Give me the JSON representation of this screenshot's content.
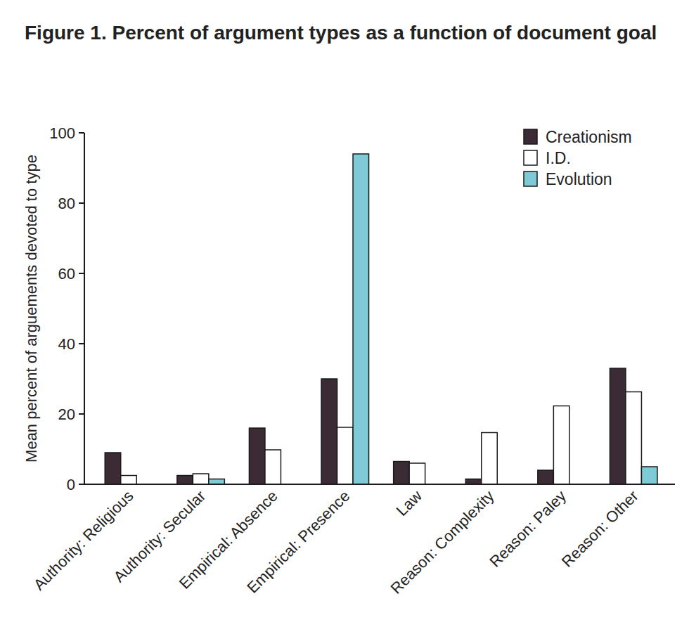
{
  "chart_data": {
    "type": "bar",
    "title": "Figure 1. Percent of argument types as a function of document goal",
    "y_label": "Mean percent of arguements devoted to type",
    "categories": [
      "Authority: Religious",
      "Authority: Secular",
      "Empirical: Absence",
      "Empirical: Presence",
      "Law",
      "Reason: Complexity",
      "Reason: Paley",
      "Reason: Other"
    ],
    "series": [
      {
        "name": "Creationism",
        "color": "#3b2b35",
        "values": [
          9,
          2.5,
          16,
          30,
          6.5,
          1.5,
          4,
          33
        ]
      },
      {
        "name": "I.D.",
        "color": "#ffffff",
        "values": [
          2.5,
          3,
          9.8,
          16.2,
          6,
          14.7,
          22.3,
          26.3
        ]
      },
      {
        "name": "Evolution",
        "color": "#7ecad6",
        "values": [
          0,
          1.5,
          0,
          94,
          0,
          0,
          0,
          5
        ]
      }
    ],
    "ylim": [
      0,
      100
    ],
    "yticks": [
      0,
      20,
      40,
      60,
      80,
      100
    ],
    "grid": false,
    "legend": "top-right"
  }
}
